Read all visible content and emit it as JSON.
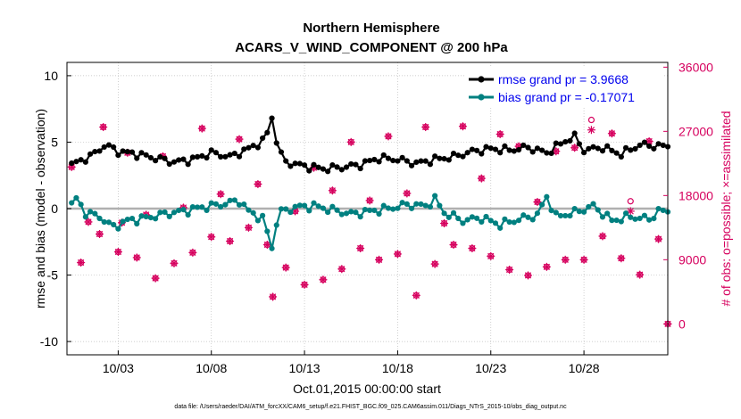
{
  "chart_data": {
    "type": "line",
    "title": "Northern Hemisphere",
    "subtitle": "ACARS_V_WIND_COMPONENT @ 200 hPa",
    "xlabel": "Oct.01,2015 00:00:00 start",
    "ylabel": "rmse and bias (model - observation)",
    "ylabel_right": "# of obs: o=possible; ×=assimilated",
    "footer": "data file: /Users/raeder/DAI/ATM_forcXX/CAM6_setup/f.e21.FHIST_BGC.f09_025.CAM6assim.011/Diags_NTrS_2015-10/obs_diag_output.nc",
    "xlim": [
      0.25,
      32.5
    ],
    "ylim": [
      -11,
      11
    ],
    "ylim_right": [
      -4333,
      36667
    ],
    "x_ticks": [
      3,
      8,
      13,
      18,
      23,
      28
    ],
    "x_tick_labels": [
      "10/03",
      "10/08",
      "10/13",
      "10/18",
      "10/23",
      "10/28"
    ],
    "y_ticks": [
      -10,
      -5,
      0,
      5,
      10
    ],
    "y_tick_labels": [
      "-10",
      "-5",
      "0",
      "5",
      "10"
    ],
    "y_ticks_right": [
      0,
      9000,
      18000,
      27000,
      36000
    ],
    "y_tick_labels_right": [
      "0",
      "9000",
      "18000",
      "27000",
      "36000"
    ],
    "zero_line": 0,
    "legend_position": "top-right",
    "colors": {
      "rmse": "#000000",
      "bias": "#008080",
      "obs": "#d6005e",
      "zero": "#b0b0b0"
    },
    "series": [
      {
        "name": "rmse",
        "legend": "rmse grand pr = 3.9668",
        "generator": "rmse",
        "anchors": [
          [
            0.5,
            3.3
          ],
          [
            1.6,
            4.0
          ],
          [
            2.3,
            4.8
          ],
          [
            3.0,
            4.3
          ],
          [
            4.0,
            4.1
          ],
          [
            5.0,
            3.8
          ],
          [
            6.0,
            3.5
          ],
          [
            7.0,
            3.7
          ],
          [
            8.0,
            4.2
          ],
          [
            9.0,
            3.9
          ],
          [
            10.0,
            4.5
          ],
          [
            10.9,
            5.2
          ],
          [
            11.25,
            6.8
          ],
          [
            11.6,
            4.4
          ],
          [
            12.0,
            3.5
          ],
          [
            13.0,
            3.2
          ],
          [
            14.0,
            3.0
          ],
          [
            15.0,
            3.1
          ],
          [
            16.0,
            3.3
          ],
          [
            17.0,
            3.8
          ],
          [
            18.0,
            3.7
          ],
          [
            19.0,
            3.4
          ],
          [
            20.0,
            3.7
          ],
          [
            21.0,
            3.9
          ],
          [
            22.0,
            4.3
          ],
          [
            23.0,
            4.5
          ],
          [
            24.0,
            4.4
          ],
          [
            25.0,
            4.6
          ],
          [
            26.0,
            4.2
          ],
          [
            27.0,
            5.1
          ],
          [
            27.5,
            5.4
          ],
          [
            28.0,
            4.4
          ],
          [
            29.0,
            4.6
          ],
          [
            30.0,
            4.1
          ],
          [
            31.0,
            4.8
          ],
          [
            32.0,
            4.7
          ]
        ]
      },
      {
        "name": "bias",
        "legend": "bias grand pr = -0.17071",
        "generator": "bias",
        "anchors": [
          [
            0.5,
            0.3
          ],
          [
            0.8,
            0.8
          ],
          [
            1.2,
            -0.3
          ],
          [
            2.0,
            -0.6
          ],
          [
            2.7,
            -1.4
          ],
          [
            3.5,
            -0.9
          ],
          [
            4.5,
            -0.7
          ],
          [
            5.5,
            -0.4
          ],
          [
            6.5,
            -0.2
          ],
          [
            7.5,
            0.1
          ],
          [
            8.5,
            0.3
          ],
          [
            9.5,
            0.6
          ],
          [
            10.0,
            -0.2
          ],
          [
            10.8,
            -0.8
          ],
          [
            11.25,
            -3.0
          ],
          [
            11.6,
            -0.3
          ],
          [
            12.5,
            0.1
          ],
          [
            13.5,
            0.2
          ],
          [
            14.5,
            -0.1
          ],
          [
            15.5,
            -0.4
          ],
          [
            16.5,
            -0.2
          ],
          [
            17.5,
            0.0
          ],
          [
            18.5,
            0.3
          ],
          [
            19.5,
            0.2
          ],
          [
            20.0,
            0.7
          ],
          [
            20.5,
            -0.3
          ],
          [
            21.5,
            -0.9
          ],
          [
            22.5,
            -0.7
          ],
          [
            23.5,
            -1.2
          ],
          [
            24.5,
            -0.8
          ],
          [
            25.5,
            -0.5
          ],
          [
            26.0,
            0.9
          ],
          [
            26.5,
            -0.6
          ],
          [
            27.5,
            -0.3
          ],
          [
            28.5,
            0.2
          ],
          [
            29.5,
            -0.9
          ],
          [
            30.5,
            -0.6
          ],
          [
            31.5,
            -0.8
          ],
          [
            32.0,
            -0.2
          ]
        ]
      },
      {
        "name": "possible",
        "legend": "",
        "marker": "o",
        "generator": "obs",
        "anchors": [
          [
            0.5,
            22000
          ],
          [
            1.0,
            8600
          ],
          [
            1.4,
            14300
          ],
          [
            2.0,
            12600
          ],
          [
            2.2,
            27600
          ],
          [
            3.0,
            10100
          ],
          [
            3.2,
            14200
          ],
          [
            3.5,
            24000
          ],
          [
            4.0,
            9300
          ],
          [
            4.5,
            15300
          ],
          [
            5.0,
            6400
          ],
          [
            5.4,
            23500
          ],
          [
            6.0,
            8500
          ],
          [
            6.5,
            16300
          ],
          [
            7.0,
            10000
          ],
          [
            7.5,
            27400
          ],
          [
            8.0,
            12200
          ],
          [
            8.5,
            18200
          ],
          [
            9.0,
            11600
          ],
          [
            9.5,
            25900
          ],
          [
            10.0,
            13500
          ],
          [
            10.5,
            19600
          ],
          [
            11.0,
            11100
          ],
          [
            11.3,
            3800
          ],
          [
            12.0,
            7900
          ],
          [
            12.5,
            15800
          ],
          [
            13.0,
            5500
          ],
          [
            13.5,
            21900
          ],
          [
            14.0,
            6200
          ],
          [
            14.5,
            18700
          ],
          [
            15.0,
            7700
          ],
          [
            15.5,
            25500
          ],
          [
            16.0,
            10600
          ],
          [
            16.5,
            17300
          ],
          [
            17.0,
            9000
          ],
          [
            17.5,
            26300
          ],
          [
            18.0,
            9800
          ],
          [
            18.5,
            18300
          ],
          [
            19.0,
            4000
          ],
          [
            19.5,
            27600
          ],
          [
            20.0,
            8400
          ],
          [
            20.5,
            14100
          ],
          [
            21.0,
            11100
          ],
          [
            21.5,
            27700
          ],
          [
            22.0,
            10600
          ],
          [
            22.5,
            20400
          ],
          [
            23.0,
            9500
          ],
          [
            23.5,
            26600
          ],
          [
            24.0,
            7600
          ],
          [
            24.5,
            24900
          ],
          [
            25.0,
            6800
          ],
          [
            25.5,
            17100
          ],
          [
            26.0,
            8000
          ],
          [
            26.5,
            24200
          ],
          [
            27.0,
            9000
          ],
          [
            27.5,
            24700
          ],
          [
            28.0,
            9000
          ],
          [
            28.4,
            28600
          ],
          [
            29.0,
            12300
          ],
          [
            29.5,
            26700
          ],
          [
            30.0,
            9200
          ],
          [
            30.5,
            17200
          ],
          [
            31.0,
            6900
          ],
          [
            31.5,
            25600
          ],
          [
            32.0,
            11900
          ],
          [
            32.5,
            0
          ]
        ]
      },
      {
        "name": "assimilated",
        "legend": "",
        "marker": "*",
        "generator": "obs",
        "anchors": [
          [
            0.5,
            22000
          ],
          [
            1.0,
            8600
          ],
          [
            1.4,
            14300
          ],
          [
            2.0,
            12600
          ],
          [
            2.2,
            27600
          ],
          [
            3.0,
            10100
          ],
          [
            3.2,
            14200
          ],
          [
            3.5,
            24000
          ],
          [
            4.0,
            9300
          ],
          [
            4.5,
            15300
          ],
          [
            5.0,
            6400
          ],
          [
            5.4,
            23500
          ],
          [
            6.0,
            8500
          ],
          [
            6.5,
            16300
          ],
          [
            7.0,
            10000
          ],
          [
            7.5,
            27400
          ],
          [
            8.0,
            12200
          ],
          [
            8.5,
            18200
          ],
          [
            9.0,
            11600
          ],
          [
            9.5,
            25900
          ],
          [
            10.0,
            13500
          ],
          [
            10.5,
            19600
          ],
          [
            11.0,
            11100
          ],
          [
            11.3,
            3800
          ],
          [
            12.0,
            7900
          ],
          [
            12.5,
            15800
          ],
          [
            13.0,
            5500
          ],
          [
            13.5,
            21900
          ],
          [
            14.0,
            6200
          ],
          [
            14.5,
            18700
          ],
          [
            15.0,
            7700
          ],
          [
            15.5,
            25500
          ],
          [
            16.0,
            10600
          ],
          [
            16.5,
            17300
          ],
          [
            17.0,
            9000
          ],
          [
            17.5,
            26300
          ],
          [
            18.0,
            9800
          ],
          [
            18.5,
            18300
          ],
          [
            19.0,
            4000
          ],
          [
            19.5,
            27600
          ],
          [
            20.0,
            8400
          ],
          [
            20.5,
            14100
          ],
          [
            21.0,
            11100
          ],
          [
            21.5,
            27700
          ],
          [
            22.0,
            10600
          ],
          [
            22.5,
            20400
          ],
          [
            23.0,
            9500
          ],
          [
            23.5,
            26600
          ],
          [
            24.0,
            7600
          ],
          [
            24.5,
            24900
          ],
          [
            25.0,
            6800
          ],
          [
            25.5,
            17100
          ],
          [
            26.0,
            8000
          ],
          [
            26.5,
            24200
          ],
          [
            27.0,
            9000
          ],
          [
            27.5,
            24700
          ],
          [
            28.0,
            9000
          ],
          [
            28.4,
            27200
          ],
          [
            29.0,
            12300
          ],
          [
            29.5,
            26700
          ],
          [
            30.0,
            9200
          ],
          [
            30.5,
            15800
          ],
          [
            31.0,
            6900
          ],
          [
            31.5,
            25600
          ],
          [
            32.0,
            11900
          ],
          [
            32.5,
            0
          ]
        ]
      }
    ]
  }
}
